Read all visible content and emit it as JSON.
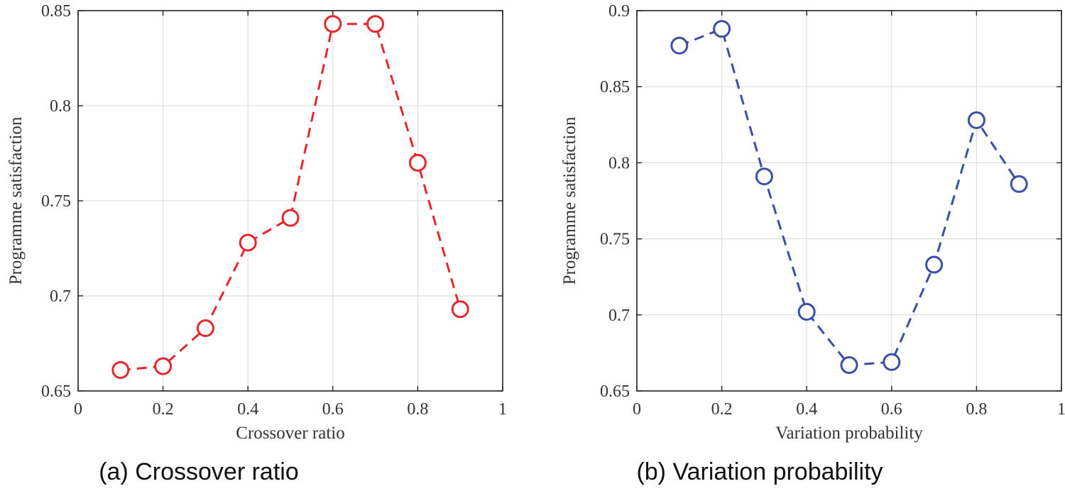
{
  "chart_data": [
    {
      "type": "line",
      "caption": "(a)  Crossover ratio",
      "xlabel": "Crossover ratio",
      "ylabel": "Programme satisfaction",
      "xlim": [
        0,
        1
      ],
      "ylim": [
        0.65,
        0.85
      ],
      "xticks": [
        0,
        0.2,
        0.4,
        0.6,
        0.8,
        1
      ],
      "xtick_labels": [
        "0",
        "0.2",
        "0.4",
        "0.6",
        "0.8",
        "1"
      ],
      "yticks": [
        0.65,
        0.7,
        0.75,
        0.8,
        0.85
      ],
      "ytick_labels": [
        "0.65",
        "0.7",
        "0.75",
        "0.8",
        "0.85"
      ],
      "grid": true,
      "series": [
        {
          "name": "Crossover ratio",
          "color": "#e8262b",
          "line_style": "dashed",
          "marker": "circle-open",
          "x": [
            0.1,
            0.2,
            0.3,
            0.4,
            0.5,
            0.6,
            0.7,
            0.8,
            0.9
          ],
          "y": [
            0.661,
            0.663,
            0.683,
            0.728,
            0.741,
            0.843,
            0.843,
            0.77,
            0.693
          ]
        }
      ]
    },
    {
      "type": "line",
      "caption": "(b)  Variation probability",
      "xlabel": "Variation probability",
      "ylabel": "Programme satisfaction",
      "xlim": [
        0,
        1
      ],
      "ylim": [
        0.65,
        0.9
      ],
      "xticks": [
        0,
        0.2,
        0.4,
        0.6,
        0.8,
        1
      ],
      "xtick_labels": [
        "0",
        "0.2",
        "0.4",
        "0.6",
        "0.8",
        "1"
      ],
      "yticks": [
        0.65,
        0.7,
        0.75,
        0.8,
        0.85,
        0.9
      ],
      "ytick_labels": [
        "0.65",
        "0.7",
        "0.75",
        "0.8",
        "0.85",
        "0.9"
      ],
      "grid": true,
      "series": [
        {
          "name": "Variation probability",
          "color": "#3a4fa6",
          "line_style": "dashed",
          "marker": "circle-open",
          "x": [
            0.1,
            0.2,
            0.3,
            0.4,
            0.5,
            0.6,
            0.7,
            0.8,
            0.9
          ],
          "y": [
            0.877,
            0.888,
            0.791,
            0.702,
            0.667,
            0.669,
            0.733,
            0.828,
            0.786
          ]
        }
      ]
    }
  ]
}
